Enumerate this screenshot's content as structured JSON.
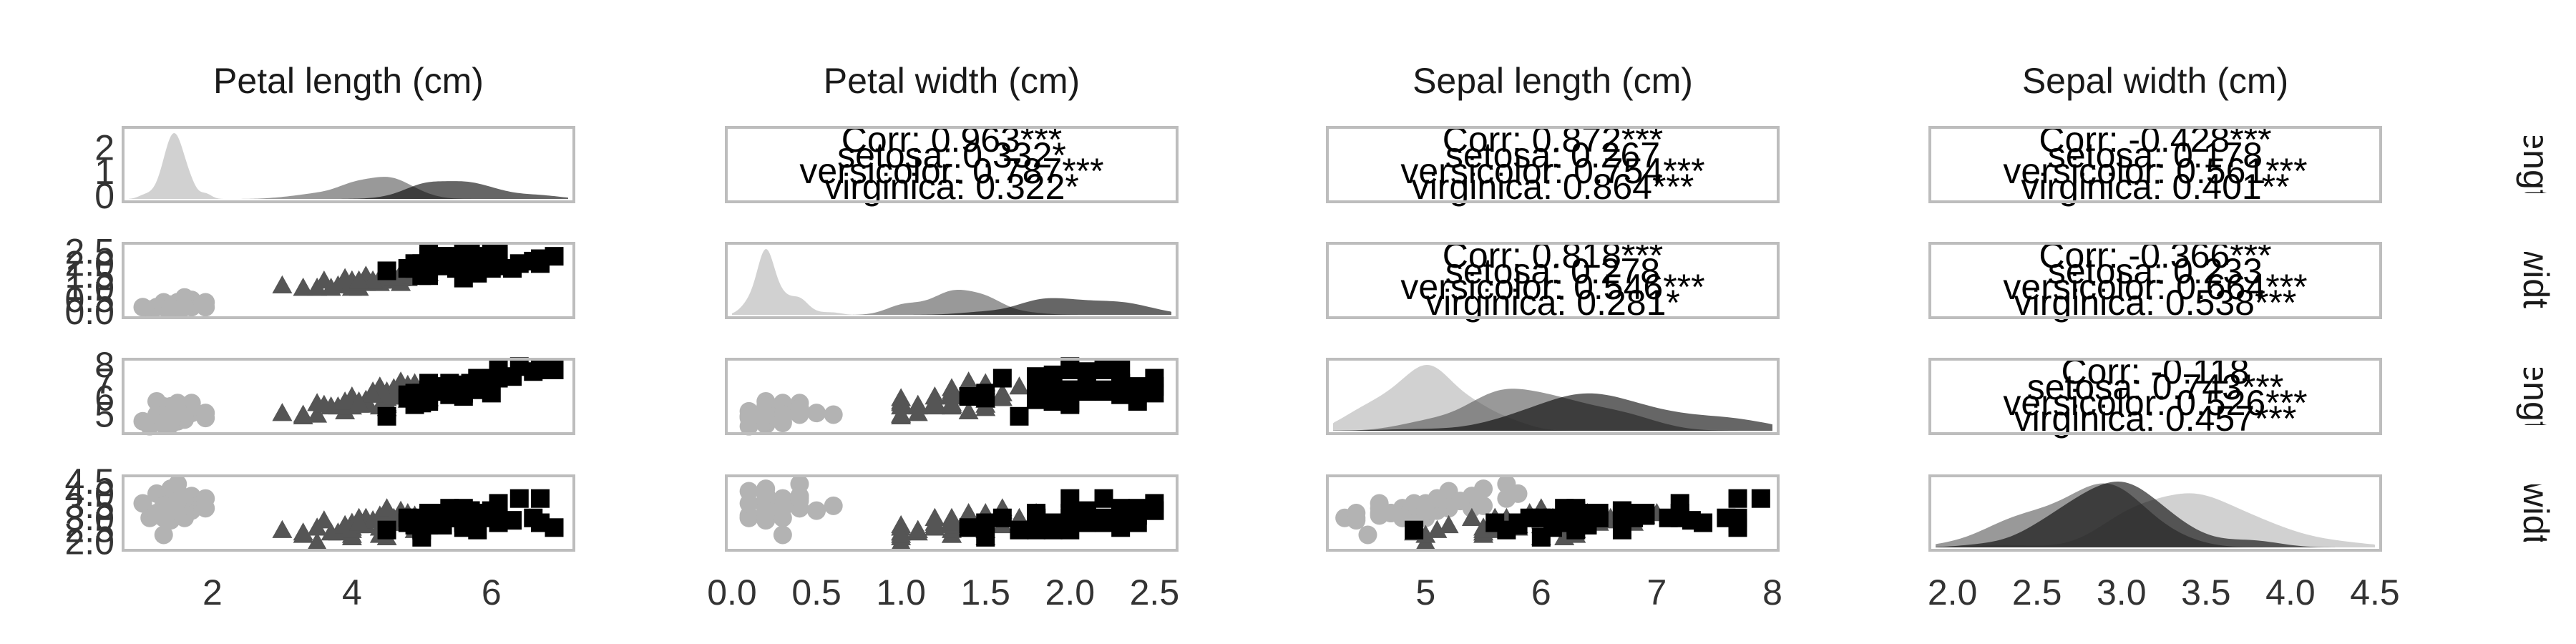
{
  "chart_data": {
    "type": "scatter",
    "layout": "pairs matrix 4x4 (lower: scatter, diagonal: density, upper: correlation text)",
    "variables": [
      {
        "key": "petal_length",
        "label": "Petal length (cm)",
        "strip_label": "engt",
        "range": [
          0.8,
          7.1
        ],
        "ticks": [
          2,
          4,
          6
        ],
        "tick_labels": [
          "2",
          "4",
          "6"
        ]
      },
      {
        "key": "petal_width",
        "label": "Petal width (cm)",
        "strip_label": "widtl",
        "range": [
          0.0,
          2.6
        ],
        "ticks": [
          0.0,
          0.5,
          1.0,
          1.5,
          2.0,
          2.5
        ],
        "tick_labels": [
          "0.0",
          "0.5",
          "1.0",
          "1.5",
          "2.0",
          "2.5"
        ]
      },
      {
        "key": "sepal_length",
        "label": "Sepal length (cm)",
        "strip_label": "engt",
        "range": [
          4.2,
          8.0
        ],
        "ticks": [
          5,
          6,
          7,
          8
        ],
        "tick_labels": [
          "5",
          "6",
          "7",
          "8"
        ]
      },
      {
        "key": "sepal_width",
        "label": "Sepal width (cm)",
        "strip_label": "widt",
        "range": [
          1.9,
          4.5
        ],
        "ticks": [
          2.0,
          2.5,
          3.0,
          3.5,
          4.0,
          4.5
        ],
        "tick_labels": [
          "2.0",
          "2.5",
          "3.0",
          "3.5",
          "4.0",
          "4.5"
        ]
      }
    ],
    "y_tick_labels": [
      {
        "ticks": [
          0,
          1,
          2
        ],
        "tick_labels": [
          "0",
          "1",
          "2"
        ],
        "range": [
          0,
          2.6
        ]
      },
      {
        "ticks": [
          0.0,
          0.5,
          1.0,
          1.5,
          2.0,
          2.5
        ],
        "tick_labels": [
          "0.0",
          "0.5",
          "1.0",
          "1.5",
          "2.0",
          "2.5"
        ],
        "range": [
          0.0,
          2.6
        ]
      },
      {
        "ticks": [
          5,
          6,
          7,
          8
        ],
        "tick_labels": [
          "5",
          "6",
          "7",
          "8"
        ],
        "range": [
          4.2,
          8.0
        ]
      },
      {
        "ticks": [
          2.0,
          2.5,
          3.0,
          3.5,
          4.0,
          4.5
        ],
        "tick_labels": [
          "2.0",
          "2.5",
          "3.0",
          "3.5",
          "4.0",
          "4.5"
        ],
        "range": [
          1.9,
          4.5
        ]
      }
    ],
    "groups": [
      {
        "name": "setosa",
        "color": "#b3b3b3",
        "marker": "circle"
      },
      {
        "name": "versicolor",
        "color": "#555555",
        "marker": "triangle"
      },
      {
        "name": "virginica",
        "color": "#000000",
        "marker": "square"
      }
    ],
    "correlations": [
      {
        "row": 0,
        "col": 1,
        "lines": [
          "Corr: 0.963***",
          "setosa: 0.332*",
          "versicolor: 0.787***",
          "virginica: 0.322*"
        ]
      },
      {
        "row": 0,
        "col": 2,
        "lines": [
          "Corr: 0.872***",
          "setosa: 0.267",
          "versicolor: 0.754***",
          "virginica: 0.864***"
        ]
      },
      {
        "row": 0,
        "col": 3,
        "lines": [
          "Corr: -0.428***",
          "setosa: 0.178",
          "versicolor: 0.561***",
          "virginica: 0.401**"
        ]
      },
      {
        "row": 1,
        "col": 2,
        "lines": [
          "Corr: 0.818***",
          "setosa: 0.278",
          "versicolor: 0.546***",
          "virginica: 0.281*"
        ]
      },
      {
        "row": 1,
        "col": 3,
        "lines": [
          "Corr: -0.366***",
          "setosa: 0.233",
          "versicolor: 0.664***",
          "virginica: 0.538***"
        ]
      },
      {
        "row": 2,
        "col": 3,
        "lines": [
          "Corr: -0.118",
          "setosa: 0.743***",
          "versicolor: 0.526***",
          "virginica: 0.457***"
        ]
      }
    ],
    "samples": {
      "setosa": [
        [
          5.1,
          3.5,
          1.4,
          0.2
        ],
        [
          4.9,
          3.0,
          1.4,
          0.2
        ],
        [
          4.7,
          3.2,
          1.3,
          0.2
        ],
        [
          4.6,
          3.1,
          1.5,
          0.2
        ],
        [
          5.0,
          3.6,
          1.4,
          0.2
        ],
        [
          5.4,
          3.9,
          1.7,
          0.4
        ],
        [
          4.6,
          3.4,
          1.4,
          0.3
        ],
        [
          5.0,
          3.4,
          1.5,
          0.2
        ],
        [
          4.4,
          2.9,
          1.4,
          0.2
        ],
        [
          4.9,
          3.1,
          1.5,
          0.1
        ],
        [
          5.4,
          3.7,
          1.5,
          0.2
        ],
        [
          4.8,
          3.4,
          1.6,
          0.2
        ],
        [
          4.8,
          3.0,
          1.4,
          0.1
        ],
        [
          4.3,
          3.0,
          1.1,
          0.1
        ],
        [
          5.8,
          4.0,
          1.2,
          0.2
        ],
        [
          5.7,
          4.4,
          1.5,
          0.4
        ],
        [
          5.4,
          3.9,
          1.3,
          0.4
        ],
        [
          5.1,
          3.5,
          1.4,
          0.3
        ],
        [
          5.7,
          3.8,
          1.7,
          0.3
        ],
        [
          5.1,
          3.8,
          1.5,
          0.3
        ],
        [
          5.4,
          3.4,
          1.7,
          0.2
        ],
        [
          5.1,
          3.7,
          1.5,
          0.4
        ],
        [
          4.6,
          3.6,
          1.0,
          0.2
        ],
        [
          5.1,
          3.3,
          1.7,
          0.5
        ],
        [
          4.8,
          3.4,
          1.9,
          0.2
        ],
        [
          5.0,
          3.0,
          1.6,
          0.2
        ],
        [
          5.0,
          3.4,
          1.6,
          0.4
        ],
        [
          5.2,
          3.5,
          1.5,
          0.2
        ],
        [
          5.2,
          3.4,
          1.4,
          0.2
        ],
        [
          4.7,
          3.2,
          1.6,
          0.2
        ],
        [
          4.8,
          3.1,
          1.6,
          0.2
        ],
        [
          5.4,
          3.4,
          1.5,
          0.4
        ],
        [
          5.2,
          4.1,
          1.5,
          0.1
        ],
        [
          5.5,
          4.2,
          1.4,
          0.2
        ],
        [
          4.9,
          3.1,
          1.5,
          0.2
        ],
        [
          5.0,
          3.2,
          1.2,
          0.2
        ],
        [
          5.5,
          3.5,
          1.3,
          0.2
        ],
        [
          4.9,
          3.6,
          1.4,
          0.1
        ],
        [
          4.4,
          3.0,
          1.3,
          0.2
        ],
        [
          5.1,
          3.4,
          1.5,
          0.2
        ],
        [
          5.0,
          3.5,
          1.3,
          0.3
        ],
        [
          4.5,
          2.3,
          1.3,
          0.3
        ],
        [
          4.4,
          3.2,
          1.3,
          0.2
        ],
        [
          5.0,
          3.5,
          1.6,
          0.6
        ],
        [
          5.1,
          3.8,
          1.9,
          0.4
        ],
        [
          4.8,
          3.0,
          1.4,
          0.3
        ],
        [
          5.1,
          3.8,
          1.6,
          0.2
        ],
        [
          4.6,
          3.2,
          1.4,
          0.2
        ],
        [
          5.3,
          3.7,
          1.5,
          0.2
        ],
        [
          5.0,
          3.3,
          1.4,
          0.2
        ]
      ],
      "versicolor": [
        [
          7.0,
          3.2,
          4.7,
          1.4
        ],
        [
          6.4,
          3.2,
          4.5,
          1.5
        ],
        [
          6.9,
          3.1,
          4.9,
          1.5
        ],
        [
          5.5,
          2.3,
          4.0,
          1.3
        ],
        [
          6.5,
          2.8,
          4.6,
          1.5
        ],
        [
          5.7,
          2.8,
          4.5,
          1.3
        ],
        [
          6.3,
          3.3,
          4.7,
          1.6
        ],
        [
          4.9,
          2.4,
          3.3,
          1.0
        ],
        [
          6.6,
          2.9,
          4.6,
          1.3
        ],
        [
          5.2,
          2.7,
          3.9,
          1.4
        ],
        [
          5.0,
          2.0,
          3.5,
          1.0
        ],
        [
          5.9,
          3.0,
          4.2,
          1.5
        ],
        [
          6.0,
          2.2,
          4.0,
          1.0
        ],
        [
          6.1,
          2.9,
          4.7,
          1.4
        ],
        [
          5.6,
          2.9,
          3.6,
          1.3
        ],
        [
          6.7,
          3.1,
          4.4,
          1.4
        ],
        [
          5.6,
          3.0,
          4.5,
          1.5
        ],
        [
          5.8,
          2.7,
          4.1,
          1.0
        ],
        [
          6.2,
          2.2,
          4.5,
          1.5
        ],
        [
          5.6,
          2.5,
          3.9,
          1.1
        ],
        [
          5.9,
          3.2,
          4.8,
          1.8
        ],
        [
          6.1,
          2.8,
          4.0,
          1.3
        ],
        [
          6.3,
          2.5,
          4.9,
          1.5
        ],
        [
          6.1,
          2.8,
          4.7,
          1.2
        ],
        [
          6.4,
          2.9,
          4.3,
          1.3
        ],
        [
          6.6,
          3.0,
          4.4,
          1.4
        ],
        [
          6.8,
          2.8,
          4.8,
          1.4
        ],
        [
          6.7,
          3.0,
          5.0,
          1.7
        ],
        [
          6.0,
          2.9,
          4.5,
          1.5
        ],
        [
          5.7,
          2.6,
          3.5,
          1.0
        ],
        [
          5.5,
          2.4,
          3.8,
          1.1
        ],
        [
          5.5,
          2.4,
          3.7,
          1.0
        ],
        [
          5.8,
          2.7,
          3.9,
          1.2
        ],
        [
          6.0,
          2.7,
          5.1,
          1.6
        ],
        [
          5.4,
          3.0,
          4.5,
          1.5
        ],
        [
          6.0,
          3.4,
          4.5,
          1.6
        ],
        [
          6.7,
          3.1,
          4.7,
          1.5
        ],
        [
          6.3,
          2.3,
          4.4,
          1.3
        ],
        [
          5.6,
          3.0,
          4.1,
          1.3
        ],
        [
          5.5,
          2.5,
          4.0,
          1.3
        ],
        [
          5.5,
          2.6,
          4.4,
          1.2
        ],
        [
          6.1,
          3.0,
          4.6,
          1.4
        ],
        [
          5.8,
          2.6,
          4.0,
          1.2
        ],
        [
          5.0,
          2.3,
          3.3,
          1.0
        ],
        [
          5.6,
          2.7,
          4.2,
          1.3
        ],
        [
          5.7,
          3.0,
          4.2,
          1.2
        ],
        [
          5.7,
          2.9,
          4.2,
          1.3
        ],
        [
          6.2,
          2.9,
          4.3,
          1.3
        ],
        [
          5.1,
          2.5,
          3.0,
          1.1
        ],
        [
          5.7,
          2.8,
          4.1,
          1.3
        ]
      ],
      "virginica": [
        [
          6.3,
          3.3,
          6.0,
          2.5
        ],
        [
          5.8,
          2.7,
          5.1,
          1.9
        ],
        [
          7.1,
          3.0,
          5.9,
          2.1
        ],
        [
          6.3,
          2.9,
          5.6,
          1.8
        ],
        [
          6.5,
          3.0,
          5.8,
          2.2
        ],
        [
          7.6,
          3.0,
          6.6,
          2.1
        ],
        [
          4.9,
          2.5,
          4.5,
          1.7
        ],
        [
          7.3,
          2.9,
          6.3,
          1.8
        ],
        [
          6.7,
          2.5,
          5.8,
          1.8
        ],
        [
          7.2,
          3.6,
          6.1,
          2.5
        ],
        [
          6.5,
          3.2,
          5.1,
          2.0
        ],
        [
          6.4,
          2.7,
          5.3,
          1.9
        ],
        [
          6.8,
          3.0,
          5.5,
          2.1
        ],
        [
          5.7,
          2.5,
          5.0,
          2.0
        ],
        [
          5.8,
          2.8,
          5.1,
          2.4
        ],
        [
          6.4,
          3.2,
          5.3,
          2.3
        ],
        [
          6.5,
          3.0,
          5.5,
          1.8
        ],
        [
          7.7,
          3.8,
          6.7,
          2.2
        ],
        [
          7.7,
          2.6,
          6.9,
          2.3
        ],
        [
          6.0,
          2.2,
          5.0,
          1.5
        ],
        [
          6.9,
          3.2,
          5.7,
          2.3
        ],
        [
          5.6,
          2.8,
          4.9,
          2.0
        ],
        [
          7.7,
          2.8,
          6.7,
          2.0
        ],
        [
          6.3,
          2.7,
          4.9,
          1.8
        ],
        [
          6.7,
          3.3,
          5.7,
          2.1
        ],
        [
          7.2,
          3.2,
          6.0,
          1.8
        ],
        [
          6.2,
          2.8,
          4.8,
          1.8
        ],
        [
          6.1,
          3.0,
          4.9,
          1.8
        ],
        [
          6.4,
          2.8,
          5.6,
          2.1
        ],
        [
          7.2,
          3.0,
          5.8,
          1.6
        ],
        [
          7.4,
          2.8,
          6.1,
          1.9
        ],
        [
          7.9,
          3.8,
          6.4,
          2.0
        ],
        [
          6.4,
          2.8,
          5.6,
          2.2
        ],
        [
          6.3,
          2.8,
          5.1,
          1.5
        ],
        [
          6.1,
          2.6,
          5.6,
          1.4
        ],
        [
          7.7,
          3.0,
          6.1,
          2.3
        ],
        [
          6.3,
          3.4,
          5.6,
          2.4
        ],
        [
          6.4,
          3.1,
          5.5,
          1.8
        ],
        [
          6.0,
          3.0,
          4.8,
          1.8
        ],
        [
          6.9,
          3.1,
          5.4,
          2.1
        ],
        [
          6.7,
          3.1,
          5.6,
          2.4
        ],
        [
          6.9,
          3.1,
          5.1,
          2.3
        ],
        [
          5.8,
          2.7,
          5.1,
          1.9
        ],
        [
          6.8,
          3.2,
          5.9,
          2.3
        ],
        [
          6.7,
          3.3,
          5.7,
          2.5
        ],
        [
          6.7,
          3.0,
          5.2,
          2.3
        ],
        [
          6.3,
          2.5,
          5.0,
          1.9
        ],
        [
          6.5,
          3.0,
          5.2,
          2.0
        ],
        [
          6.2,
          3.4,
          5.4,
          2.3
        ],
        [
          5.9,
          3.0,
          5.1,
          1.8
        ]
      ]
    },
    "sample_columns": [
      "sepal_length",
      "sepal_width",
      "petal_length",
      "petal_width"
    ],
    "grid": false,
    "legend": "none"
  }
}
